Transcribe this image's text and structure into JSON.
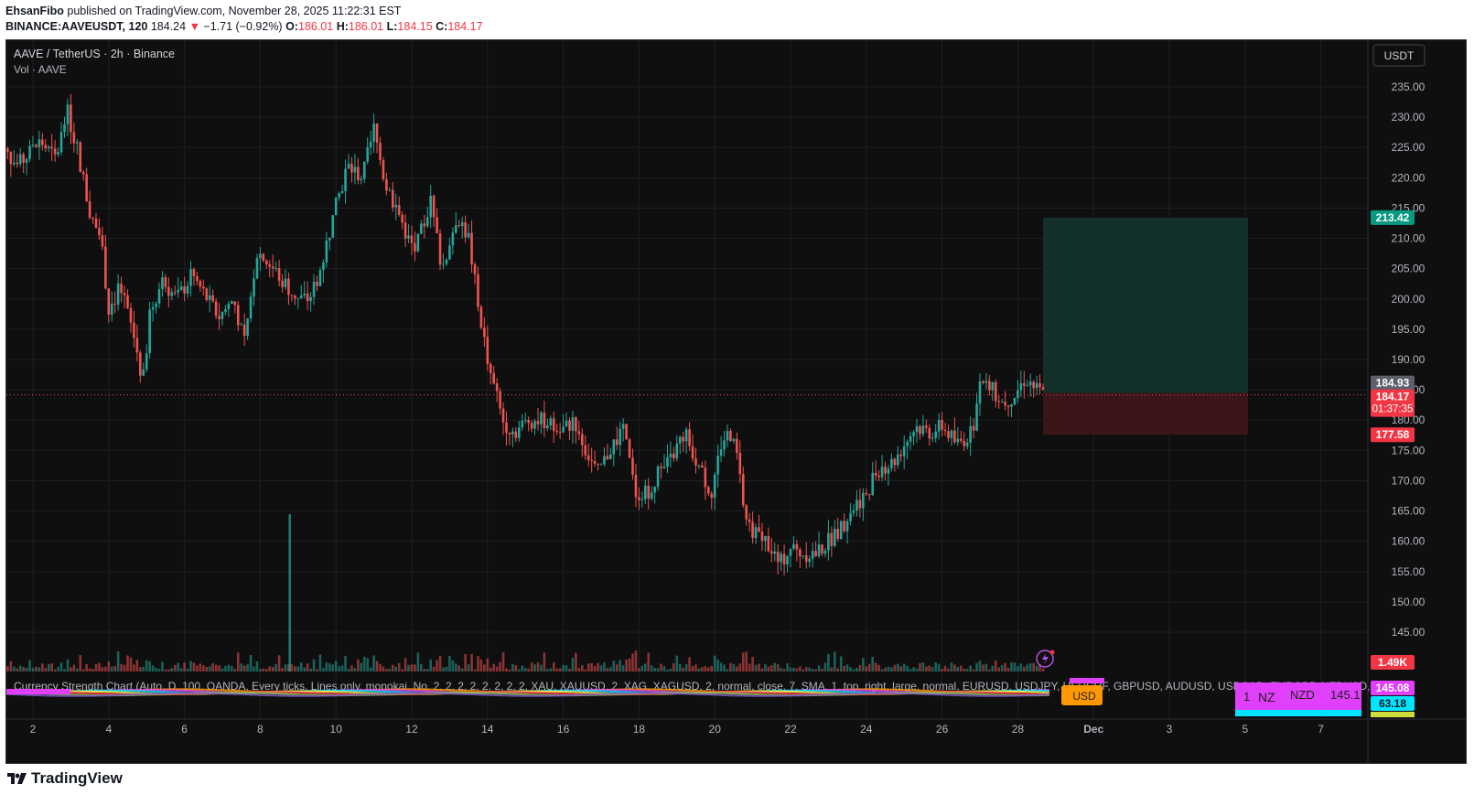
{
  "header": {
    "author": "EhsanFibo",
    "published": "published on TradingView.com, November 28, 2025 11:22:31 EST",
    "symbol_line": "BINANCE:AAVEUSDT, 120",
    "last": "184.24",
    "change": "−1.71 (−0.92%)",
    "o_label": "O:",
    "o": "186.01",
    "h_label": "H:",
    "h": "186.01",
    "l_label": "L:",
    "l": "184.15",
    "c_label": "C:",
    "c": "184.17"
  },
  "legend": {
    "title": "AAVE / TetherUS · 2h · Binance",
    "volume": "Vol · AAVE"
  },
  "currency_button": "USDT",
  "indicator_text": "Currency Strength Chart (Auto, D, 100, OANDA, Every ticks, Lines only, monokai, No, 2, 2, 2, 2, 2, 2, 2, 2, XAU, XAUUSD, 2, XAG, XAGUSD, 2, normal, close, 7, SMA, 1, top, right, large, normal, EURUSD, USDJPY, USDCHF, GBPUSD, AUDUSD, USDCAD, EURGBP, NZDUSD, botto",
  "usd_tag": "USD",
  "strength_table": {
    "c1": "1",
    "c2": "NZ",
    "c3": "NZD",
    "c4": "145.1"
  },
  "price_badges": {
    "take_profit": "213.42",
    "prev_close": "184.93",
    "last_price": "184.17",
    "countdown": "01:37:35",
    "stop_loss": "177.58",
    "volume_last": "1.49K",
    "ind1": "145.08",
    "ind2": "63.18"
  },
  "colors": {
    "up": "#26a69a",
    "down": "#ef5350",
    "background": "#0f0f0f",
    "profit_zone": "#13302b",
    "loss_zone": "#3b1518",
    "accent_pink": "#e040fb",
    "accent_orange": "#ff9800"
  },
  "footer": {
    "brand": "TradingView",
    "logo": "tradingview-logo-icon"
  },
  "chart_data": {
    "type": "candlestick",
    "title": "AAVE / TetherUS · 2h · Binance",
    "y_axis": {
      "ticks": [
        "145.00",
        "150.00",
        "155.00",
        "160.00",
        "165.00",
        "170.00",
        "175.00",
        "180.00",
        "185.00",
        "190.00",
        "195.00",
        "200.00",
        "205.00",
        "210.00",
        "215.00",
        "220.00",
        "225.00",
        "230.00",
        "235.00"
      ],
      "range": [
        142,
        240
      ],
      "position": "right"
    },
    "x_axis": {
      "ticks": [
        "2",
        "4",
        "6",
        "8",
        "10",
        "12",
        "14",
        "16",
        "18",
        "20",
        "22",
        "24",
        "26",
        "28",
        "Dec",
        "3",
        "5",
        "7"
      ],
      "range_days": [
        1,
        7
      ]
    },
    "price_path": [
      [
        1.0,
        226
      ],
      [
        1.6,
        222
      ],
      [
        2.2,
        226
      ],
      [
        2.6,
        223
      ],
      [
        2.9,
        231
      ],
      [
        3.2,
        224
      ],
      [
        3.5,
        214
      ],
      [
        3.8,
        210
      ],
      [
        4.0,
        198
      ],
      [
        4.3,
        202
      ],
      [
        4.7,
        193
      ],
      [
        4.9,
        186
      ],
      [
        5.1,
        198
      ],
      [
        5.4,
        203
      ],
      [
        5.8,
        200
      ],
      [
        6.2,
        204
      ],
      [
        6.6,
        200
      ],
      [
        6.9,
        197
      ],
      [
        7.3,
        200
      ],
      [
        7.6,
        192
      ],
      [
        7.9,
        208
      ],
      [
        8.2,
        206
      ],
      [
        8.6,
        203
      ],
      [
        9.0,
        200
      ],
      [
        9.3,
        200
      ],
      [
        9.6,
        205
      ],
      [
        9.9,
        213
      ],
      [
        10.3,
        222
      ],
      [
        10.7,
        220
      ],
      [
        11.0,
        228
      ],
      [
        11.3,
        219
      ],
      [
        11.6,
        215
      ],
      [
        11.9,
        210
      ],
      [
        12.1,
        208
      ],
      [
        12.5,
        216
      ],
      [
        12.8,
        205
      ],
      [
        13.2,
        214
      ],
      [
        13.5,
        210
      ],
      [
        13.8,
        197
      ],
      [
        14.1,
        187
      ],
      [
        14.4,
        180
      ],
      [
        14.7,
        178
      ],
      [
        15.1,
        180
      ],
      [
        15.5,
        180
      ],
      [
        15.9,
        178
      ],
      [
        16.3,
        180
      ],
      [
        16.6,
        175
      ],
      [
        16.9,
        171
      ],
      [
        17.3,
        176
      ],
      [
        17.6,
        178
      ],
      [
        17.9,
        168
      ],
      [
        18.2,
        168
      ],
      [
        18.5,
        171
      ],
      [
        18.8,
        173
      ],
      [
        19.2,
        178
      ],
      [
        19.6,
        172
      ],
      [
        19.9,
        168
      ],
      [
        20.2,
        177
      ],
      [
        20.5,
        178
      ],
      [
        20.8,
        164
      ],
      [
        21.1,
        161
      ],
      [
        21.4,
        160
      ],
      [
        21.7,
        156
      ],
      [
        22.0,
        159
      ],
      [
        22.3,
        158
      ],
      [
        22.7,
        158
      ],
      [
        23.0,
        160
      ],
      [
        23.4,
        163
      ],
      [
        23.7,
        166
      ],
      [
        24.0,
        168
      ],
      [
        24.3,
        172
      ],
      [
        24.7,
        173
      ],
      [
        25.0,
        176
      ],
      [
        25.3,
        179
      ],
      [
        25.7,
        178
      ],
      [
        26.0,
        179
      ],
      [
        26.4,
        176
      ],
      [
        26.8,
        178
      ],
      [
        27.0,
        186
      ],
      [
        27.3,
        185
      ],
      [
        27.6,
        183
      ],
      [
        27.9,
        184
      ],
      [
        28.2,
        187
      ],
      [
        28.5,
        185
      ],
      [
        28.7,
        184.17
      ]
    ],
    "last_price": 184.17,
    "prev_close": 184.93,
    "position": {
      "entry": 184.5,
      "take_profit": 213.42,
      "stop_loss": 177.58
    }
  }
}
